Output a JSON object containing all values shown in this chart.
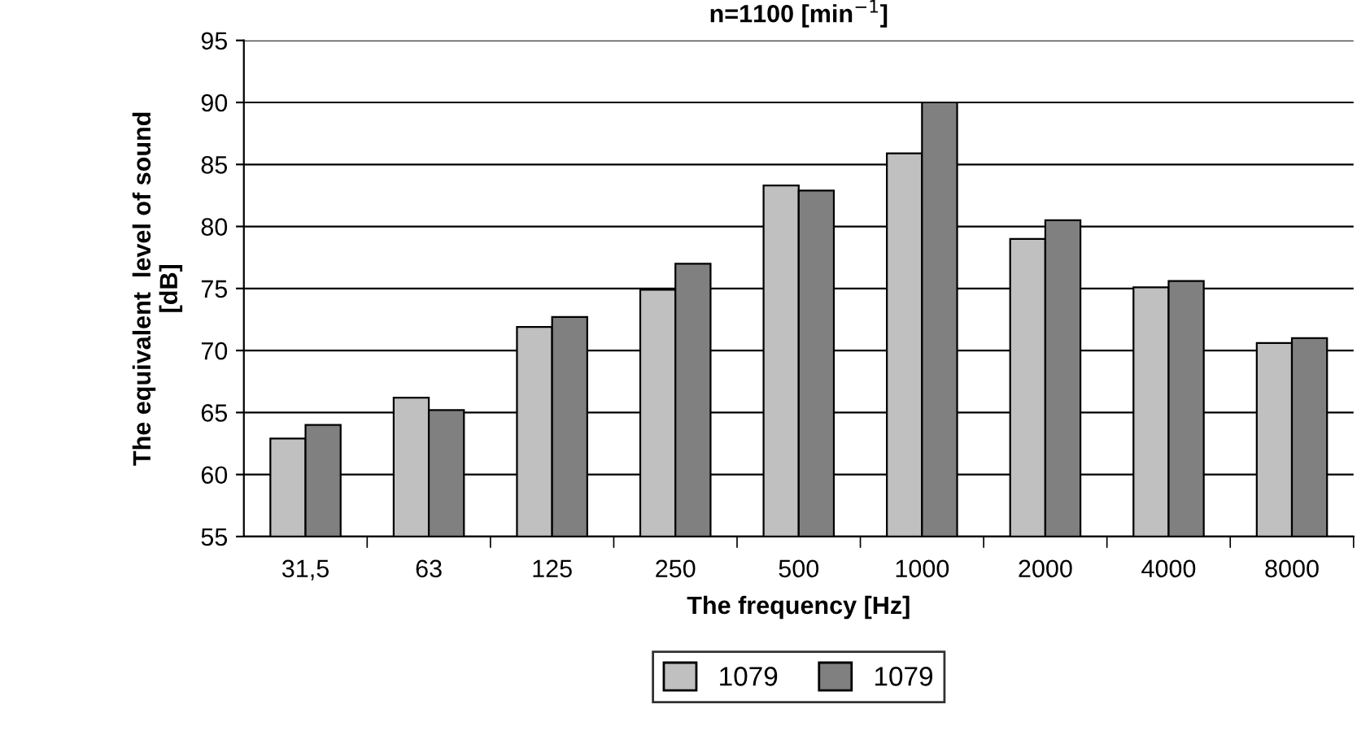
{
  "chart_data": {
    "type": "bar",
    "title": "n=1100 [min$^{−1}$]",
    "xlabel": "The frequency [Hz]",
    "ylabel": "The equivalent  level of sound\n[dB]",
    "categories": [
      "31,5",
      "63",
      "125",
      "250",
      "500",
      "1000",
      "2000",
      "4000",
      "8000"
    ],
    "series": [
      {
        "name": "1079",
        "color": "#c0c0c0",
        "values": [
          62.9,
          66.2,
          71.9,
          74.9,
          83.3,
          85.9,
          79.0,
          75.1,
          70.6
        ]
      },
      {
        "name": "1079",
        "color": "#808080",
        "values": [
          64.0,
          65.2,
          72.7,
          77.0,
          82.9,
          90.0,
          80.5,
          75.6,
          71.0
        ]
      }
    ],
    "ylim": [
      55,
      95
    ],
    "yticks": [
      55,
      60,
      65,
      70,
      75,
      80,
      85,
      90,
      95
    ],
    "grid": "y",
    "legend": "bottom"
  }
}
